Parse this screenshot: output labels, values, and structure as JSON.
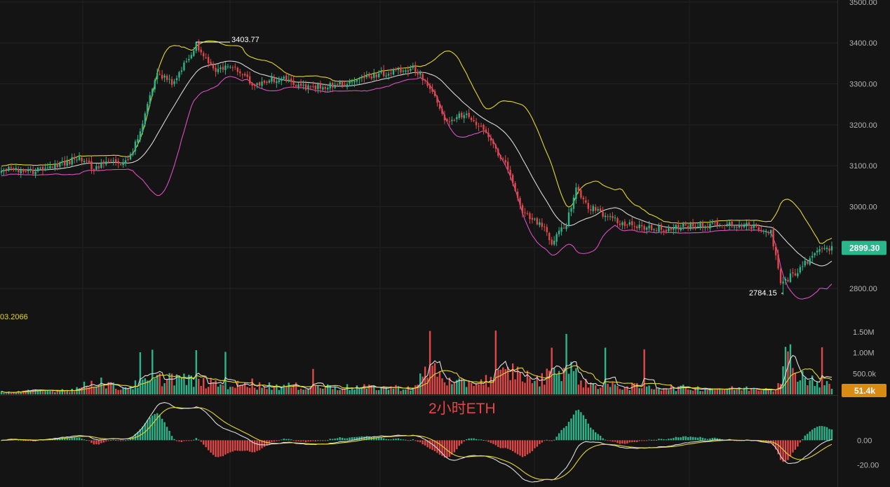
{
  "chart_data": {
    "type": "candlestick",
    "caption": "2小时ETH",
    "colors": {
      "background": "#141414",
      "up": "#2bb58a",
      "down": "#e04848",
      "boll_upper": "#e3d630",
      "boll_middle": "#d7d7d7",
      "boll_lower": "#d94fc2",
      "macd_dif": "#dcdcdc",
      "macd_dea": "#e3d630",
      "price_badge": "#2bb58a",
      "volume_badge": "#d98b14",
      "caption": "#e64545"
    },
    "price_axis": {
      "ylim": [
        2742,
        3505
      ],
      "ticks": [
        2800,
        2900,
        3000,
        3100,
        3200,
        3300,
        3400,
        3500
      ],
      "tick_labels": [
        "2800.00",
        "2900.00",
        "3000.00",
        "3100.00",
        "3200.00",
        "3300.00",
        "3400.00",
        "3500.00"
      ]
    },
    "volume_axis": {
      "ylim": [
        0,
        1700000
      ],
      "ticks": [
        500000,
        1000000,
        1500000
      ],
      "tick_labels": [
        "500.0k",
        "1.00M",
        "1.50M"
      ]
    },
    "macd_axis": {
      "ylim": [
        -38,
        35
      ],
      "ticks": [
        0,
        -20
      ],
      "tick_labels": [
        "0.00",
        "-20.00"
      ]
    },
    "last_price": {
      "value": 2899.3,
      "label": "2899.30"
    },
    "last_volume": {
      "value": 51400,
      "label": "51.4k"
    },
    "volume_indicator_label": "03.2066",
    "high_annotation": {
      "value": 3403.77,
      "label": "3403.77"
    },
    "low_annotation": {
      "value": 2784.15,
      "label": "2784.15"
    },
    "price_anchors": [
      [
        0,
        3095
      ],
      [
        12,
        3085
      ],
      [
        22,
        3102
      ],
      [
        32,
        3118
      ],
      [
        38,
        3095
      ],
      [
        45,
        3108
      ],
      [
        52,
        3112
      ],
      [
        57,
        3178
      ],
      [
        64,
        3330
      ],
      [
        70,
        3300
      ],
      [
        80,
        3395
      ],
      [
        88,
        3330
      ],
      [
        94,
        3345
      ],
      [
        103,
        3300
      ],
      [
        115,
        3315
      ],
      [
        125,
        3290
      ],
      [
        140,
        3300
      ],
      [
        150,
        3318
      ],
      [
        165,
        3335
      ],
      [
        170,
        3338
      ],
      [
        176,
        3290
      ],
      [
        182,
        3210
      ],
      [
        190,
        3225
      ],
      [
        200,
        3175
      ],
      [
        207,
        3100
      ],
      [
        214,
        2990
      ],
      [
        222,
        2955
      ],
      [
        226,
        2910
      ],
      [
        232,
        2960
      ],
      [
        236,
        3045
      ],
      [
        240,
        3005
      ],
      [
        248,
        2975
      ],
      [
        258,
        2955
      ],
      [
        272,
        2945
      ],
      [
        286,
        2955
      ],
      [
        300,
        2958
      ],
      [
        312,
        2948
      ],
      [
        316,
        2940
      ],
      [
        320,
        2810
      ],
      [
        328,
        2850
      ],
      [
        336,
        2895
      ],
      [
        341,
        2899.3
      ]
    ],
    "volume_profile": [
      [
        0,
        60000
      ],
      [
        30,
        130000
      ],
      [
        40,
        380000
      ],
      [
        48,
        160000
      ],
      [
        60,
        320000
      ],
      [
        70,
        480000
      ],
      [
        80,
        320000
      ],
      [
        95,
        250000
      ],
      [
        120,
        210000
      ],
      [
        150,
        180000
      ],
      [
        170,
        180000
      ],
      [
        176,
        800000
      ],
      [
        185,
        260000
      ],
      [
        200,
        380000
      ],
      [
        210,
        620000
      ],
      [
        220,
        350000
      ],
      [
        232,
        750000
      ],
      [
        240,
        280000
      ],
      [
        250,
        220000
      ],
      [
        275,
        180000
      ],
      [
        300,
        150000
      ],
      [
        318,
        160000
      ],
      [
        322,
        950000
      ],
      [
        330,
        450000
      ],
      [
        341,
        200000
      ]
    ],
    "volume_spikes": [
      [
        57,
        1010000
      ],
      [
        62,
        1070000
      ],
      [
        80,
        1060000
      ],
      [
        92,
        1020000
      ],
      [
        103,
        380000
      ],
      [
        128,
        610000
      ],
      [
        176,
        1520000
      ],
      [
        203,
        1530000
      ],
      [
        226,
        1120000
      ],
      [
        232,
        1450000
      ],
      [
        248,
        1120000
      ],
      [
        264,
        1080000
      ],
      [
        324,
        1200000
      ],
      [
        337,
        1130000
      ]
    ]
  }
}
